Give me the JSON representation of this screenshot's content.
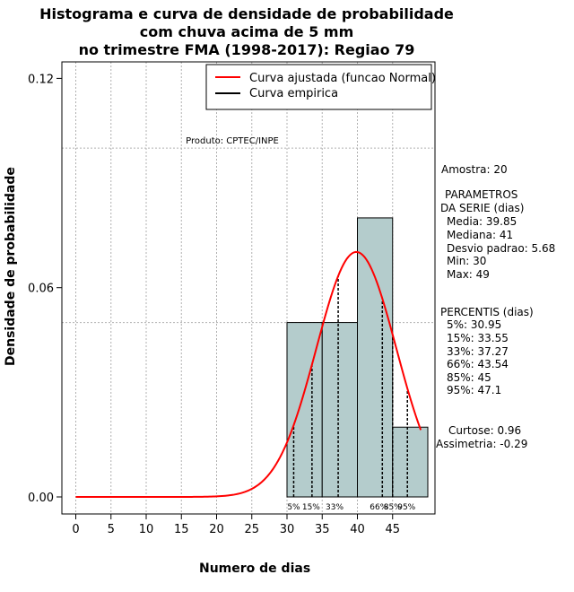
{
  "chart_data": {
    "type": "bar",
    "title_lines": [
      "Histograma e curva de densidade de probabilidade",
      "com chuva acima de 5 mm",
      "no trimestre FMA (1998-2017): Regiao 79"
    ],
    "xlabel": "Numero de dias",
    "ylabel": "Densidade de probabilidade",
    "xlim": [
      -2,
      50
    ],
    "ylim": [
      0,
      0.12
    ],
    "x_ticks": [
      0,
      5,
      10,
      15,
      20,
      25,
      30,
      35,
      40,
      45
    ],
    "y_ticks": [
      0.0,
      0.06,
      0.12
    ],
    "y_tick_labels": [
      "0.00",
      "0.06",
      "0.12"
    ],
    "grid": true,
    "bins": [
      {
        "from": 30,
        "to": 35,
        "density": 0.05
      },
      {
        "from": 35,
        "to": 40,
        "density": 0.05
      },
      {
        "from": 40,
        "to": 45,
        "density": 0.08
      },
      {
        "from": 45,
        "to": 50,
        "density": 0.02
      }
    ],
    "normal_curve": {
      "mean": 39.85,
      "sd": 5.68,
      "x_from": 0,
      "x_to": 49
    },
    "legend": [
      {
        "label": "Curva ajustada (funcao Normal)",
        "color": "#ff0000"
      },
      {
        "label": "Curva empirica",
        "color": "#000000"
      }
    ],
    "percentile_lines": [
      {
        "label": "5%",
        "value": 30.95
      },
      {
        "label": "15%",
        "value": 33.55
      },
      {
        "label": "33%",
        "value": 37.27
      },
      {
        "label": "66%",
        "value": 43.54
      },
      {
        "label": "85%",
        "value": 45
      },
      {
        "label": "95%",
        "value": 47.1
      }
    ],
    "product_label": "Produto: CPTEC/INPE",
    "bar_color": "#b4cccc",
    "curve_color": "#ff0000"
  },
  "stats": {
    "amostra": "Amostra: 20",
    "param_header_1": "PARAMETROS",
    "param_header_2": "DA SERIE (dias)",
    "media": "Media: 39.85",
    "mediana": "Mediana: 41",
    "desvio": "Desvio padrao: 5.68",
    "min": "Min: 30",
    "max": "Max: 49",
    "percentis_header": "PERCENTIS (dias)",
    "p5": "5%: 30.95",
    "p15": "15%: 33.55",
    "p33": "33%: 37.27",
    "p66": "66%: 43.54",
    "p85": "85%: 45",
    "p95": "95%: 47.1",
    "curtose": "Curtose: 0.96",
    "assimetria": "Assimetria: -0.29"
  }
}
